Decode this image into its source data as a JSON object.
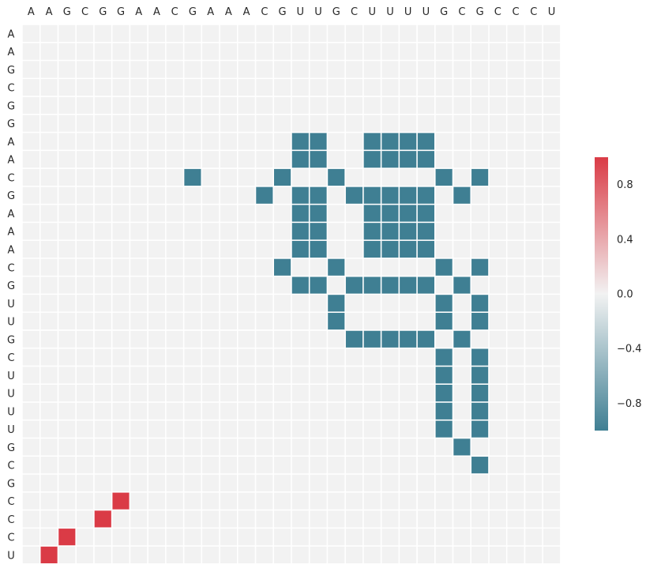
{
  "chart_data": {
    "type": "heatmap",
    "title": "",
    "xlabel": "",
    "ylabel": "",
    "x_labels": [
      "A",
      "A",
      "G",
      "C",
      "G",
      "G",
      "A",
      "A",
      "C",
      "G",
      "A",
      "A",
      "A",
      "C",
      "G",
      "U",
      "U",
      "G",
      "C",
      "U",
      "U",
      "U",
      "U",
      "G",
      "C",
      "G",
      "C",
      "C",
      "C",
      "U"
    ],
    "y_labels": [
      "A",
      "A",
      "G",
      "C",
      "G",
      "G",
      "A",
      "A",
      "C",
      "G",
      "A",
      "A",
      "A",
      "C",
      "G",
      "U",
      "U",
      "G",
      "C",
      "U",
      "U",
      "U",
      "U",
      "G",
      "C",
      "G",
      "C",
      "C",
      "C",
      "U"
    ],
    "value_range": [
      -1,
      1
    ],
    "background_value": 0,
    "colorscale": {
      "negative": "#3f7f93",
      "neutral": "#f2f2f2",
      "positive": "#da3b46"
    },
    "colorbar": {
      "ticks": [
        "0.8",
        "0.4",
        "0.0",
        "−0.4",
        "−0.8"
      ],
      "tick_values": [
        0.8,
        0.4,
        0.0,
        -0.4,
        -0.8
      ]
    },
    "cells": [
      {
        "row": 6,
        "col": 15,
        "value": -1
      },
      {
        "row": 6,
        "col": 16,
        "value": -1
      },
      {
        "row": 6,
        "col": 19,
        "value": -1
      },
      {
        "row": 6,
        "col": 20,
        "value": -1
      },
      {
        "row": 6,
        "col": 21,
        "value": -1
      },
      {
        "row": 6,
        "col": 22,
        "value": -1
      },
      {
        "row": 7,
        "col": 15,
        "value": -1
      },
      {
        "row": 7,
        "col": 16,
        "value": -1
      },
      {
        "row": 7,
        "col": 19,
        "value": -1
      },
      {
        "row": 7,
        "col": 20,
        "value": -1
      },
      {
        "row": 7,
        "col": 21,
        "value": -1
      },
      {
        "row": 7,
        "col": 22,
        "value": -1
      },
      {
        "row": 8,
        "col": 9,
        "value": -1
      },
      {
        "row": 8,
        "col": 14,
        "value": -1
      },
      {
        "row": 8,
        "col": 17,
        "value": -1
      },
      {
        "row": 8,
        "col": 23,
        "value": -1
      },
      {
        "row": 8,
        "col": 25,
        "value": -1
      },
      {
        "row": 9,
        "col": 13,
        "value": -1
      },
      {
        "row": 9,
        "col": 15,
        "value": -1
      },
      {
        "row": 9,
        "col": 16,
        "value": -1
      },
      {
        "row": 9,
        "col": 18,
        "value": -1
      },
      {
        "row": 9,
        "col": 19,
        "value": -1
      },
      {
        "row": 9,
        "col": 20,
        "value": -1
      },
      {
        "row": 9,
        "col": 21,
        "value": -1
      },
      {
        "row": 9,
        "col": 22,
        "value": -1
      },
      {
        "row": 9,
        "col": 24,
        "value": -1
      },
      {
        "row": 10,
        "col": 15,
        "value": -1
      },
      {
        "row": 10,
        "col": 16,
        "value": -1
      },
      {
        "row": 10,
        "col": 19,
        "value": -1
      },
      {
        "row": 10,
        "col": 20,
        "value": -1
      },
      {
        "row": 10,
        "col": 21,
        "value": -1
      },
      {
        "row": 10,
        "col": 22,
        "value": -1
      },
      {
        "row": 11,
        "col": 15,
        "value": -1
      },
      {
        "row": 11,
        "col": 16,
        "value": -1
      },
      {
        "row": 11,
        "col": 19,
        "value": -1
      },
      {
        "row": 11,
        "col": 20,
        "value": -1
      },
      {
        "row": 11,
        "col": 21,
        "value": -1
      },
      {
        "row": 11,
        "col": 22,
        "value": -1
      },
      {
        "row": 12,
        "col": 15,
        "value": -1
      },
      {
        "row": 12,
        "col": 16,
        "value": -1
      },
      {
        "row": 12,
        "col": 19,
        "value": -1
      },
      {
        "row": 12,
        "col": 20,
        "value": -1
      },
      {
        "row": 12,
        "col": 21,
        "value": -1
      },
      {
        "row": 12,
        "col": 22,
        "value": -1
      },
      {
        "row": 13,
        "col": 14,
        "value": -1
      },
      {
        "row": 13,
        "col": 17,
        "value": -1
      },
      {
        "row": 13,
        "col": 23,
        "value": -1
      },
      {
        "row": 13,
        "col": 25,
        "value": -1
      },
      {
        "row": 14,
        "col": 15,
        "value": -1
      },
      {
        "row": 14,
        "col": 16,
        "value": -1
      },
      {
        "row": 14,
        "col": 18,
        "value": -1
      },
      {
        "row": 14,
        "col": 19,
        "value": -1
      },
      {
        "row": 14,
        "col": 20,
        "value": -1
      },
      {
        "row": 14,
        "col": 21,
        "value": -1
      },
      {
        "row": 14,
        "col": 22,
        "value": -1
      },
      {
        "row": 14,
        "col": 24,
        "value": -1
      },
      {
        "row": 15,
        "col": 17,
        "value": -1
      },
      {
        "row": 15,
        "col": 23,
        "value": -1
      },
      {
        "row": 15,
        "col": 25,
        "value": -1
      },
      {
        "row": 16,
        "col": 17,
        "value": -1
      },
      {
        "row": 16,
        "col": 23,
        "value": -1
      },
      {
        "row": 16,
        "col": 25,
        "value": -1
      },
      {
        "row": 17,
        "col": 18,
        "value": -1
      },
      {
        "row": 17,
        "col": 19,
        "value": -1
      },
      {
        "row": 17,
        "col": 20,
        "value": -1
      },
      {
        "row": 17,
        "col": 21,
        "value": -1
      },
      {
        "row": 17,
        "col": 22,
        "value": -1
      },
      {
        "row": 17,
        "col": 24,
        "value": -1
      },
      {
        "row": 18,
        "col": 23,
        "value": -1
      },
      {
        "row": 18,
        "col": 25,
        "value": -1
      },
      {
        "row": 19,
        "col": 23,
        "value": -1
      },
      {
        "row": 19,
        "col": 25,
        "value": -1
      },
      {
        "row": 20,
        "col": 23,
        "value": -1
      },
      {
        "row": 20,
        "col": 25,
        "value": -1
      },
      {
        "row": 21,
        "col": 23,
        "value": -1
      },
      {
        "row": 21,
        "col": 25,
        "value": -1
      },
      {
        "row": 22,
        "col": 23,
        "value": -1
      },
      {
        "row": 22,
        "col": 25,
        "value": -1
      },
      {
        "row": 23,
        "col": 24,
        "value": -1
      },
      {
        "row": 24,
        "col": 25,
        "value": -1
      },
      {
        "row": 26,
        "col": 5,
        "value": 1
      },
      {
        "row": 27,
        "col": 4,
        "value": 1
      },
      {
        "row": 28,
        "col": 2,
        "value": 1
      },
      {
        "row": 29,
        "col": 1,
        "value": 1
      }
    ]
  }
}
